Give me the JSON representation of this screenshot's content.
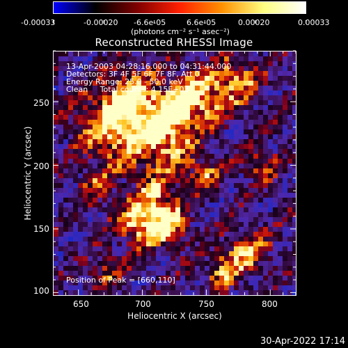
{
  "colorbar": {
    "tick_labels": [
      "-0.00033",
      "-0.00020",
      "-6.6e-05",
      "6.6e-05",
      "0.00020",
      "0.00033"
    ],
    "unit_label": "(photons cm⁻² s⁻¹ asec⁻²)",
    "colors": [
      "#0000ff",
      "#000000",
      "#800000",
      "#ff2000",
      "#ff9000",
      "#ffff80",
      "#ffffff"
    ]
  },
  "plot": {
    "title": "Reconstructed RHESSI Image",
    "xlabel": "Heliocentric X (arcsec)",
    "ylabel": "Heliocentric Y (arcsec)",
    "x_ticks": [
      "650",
      "700",
      "750",
      "800"
    ],
    "y_ticks": [
      "100",
      "150",
      "200",
      "250"
    ],
    "x_range": [
      630,
      820
    ],
    "y_range": [
      98,
      290
    ]
  },
  "annotations": {
    "time_range": "13-Apr-2003 04:28:16.000 to 04:31:44.000",
    "detectors": "Detectors: 3F 4F 5F 6F 7F 8F, Att 0",
    "energy": "Energy Range: 25.0 - 50.0 keV",
    "clean": "Clean     Total counts: 4.15E+03",
    "peak": "Position of Peak = [660,110]"
  },
  "footer": {
    "timestamp": "30-Apr-2022 17:14"
  }
}
